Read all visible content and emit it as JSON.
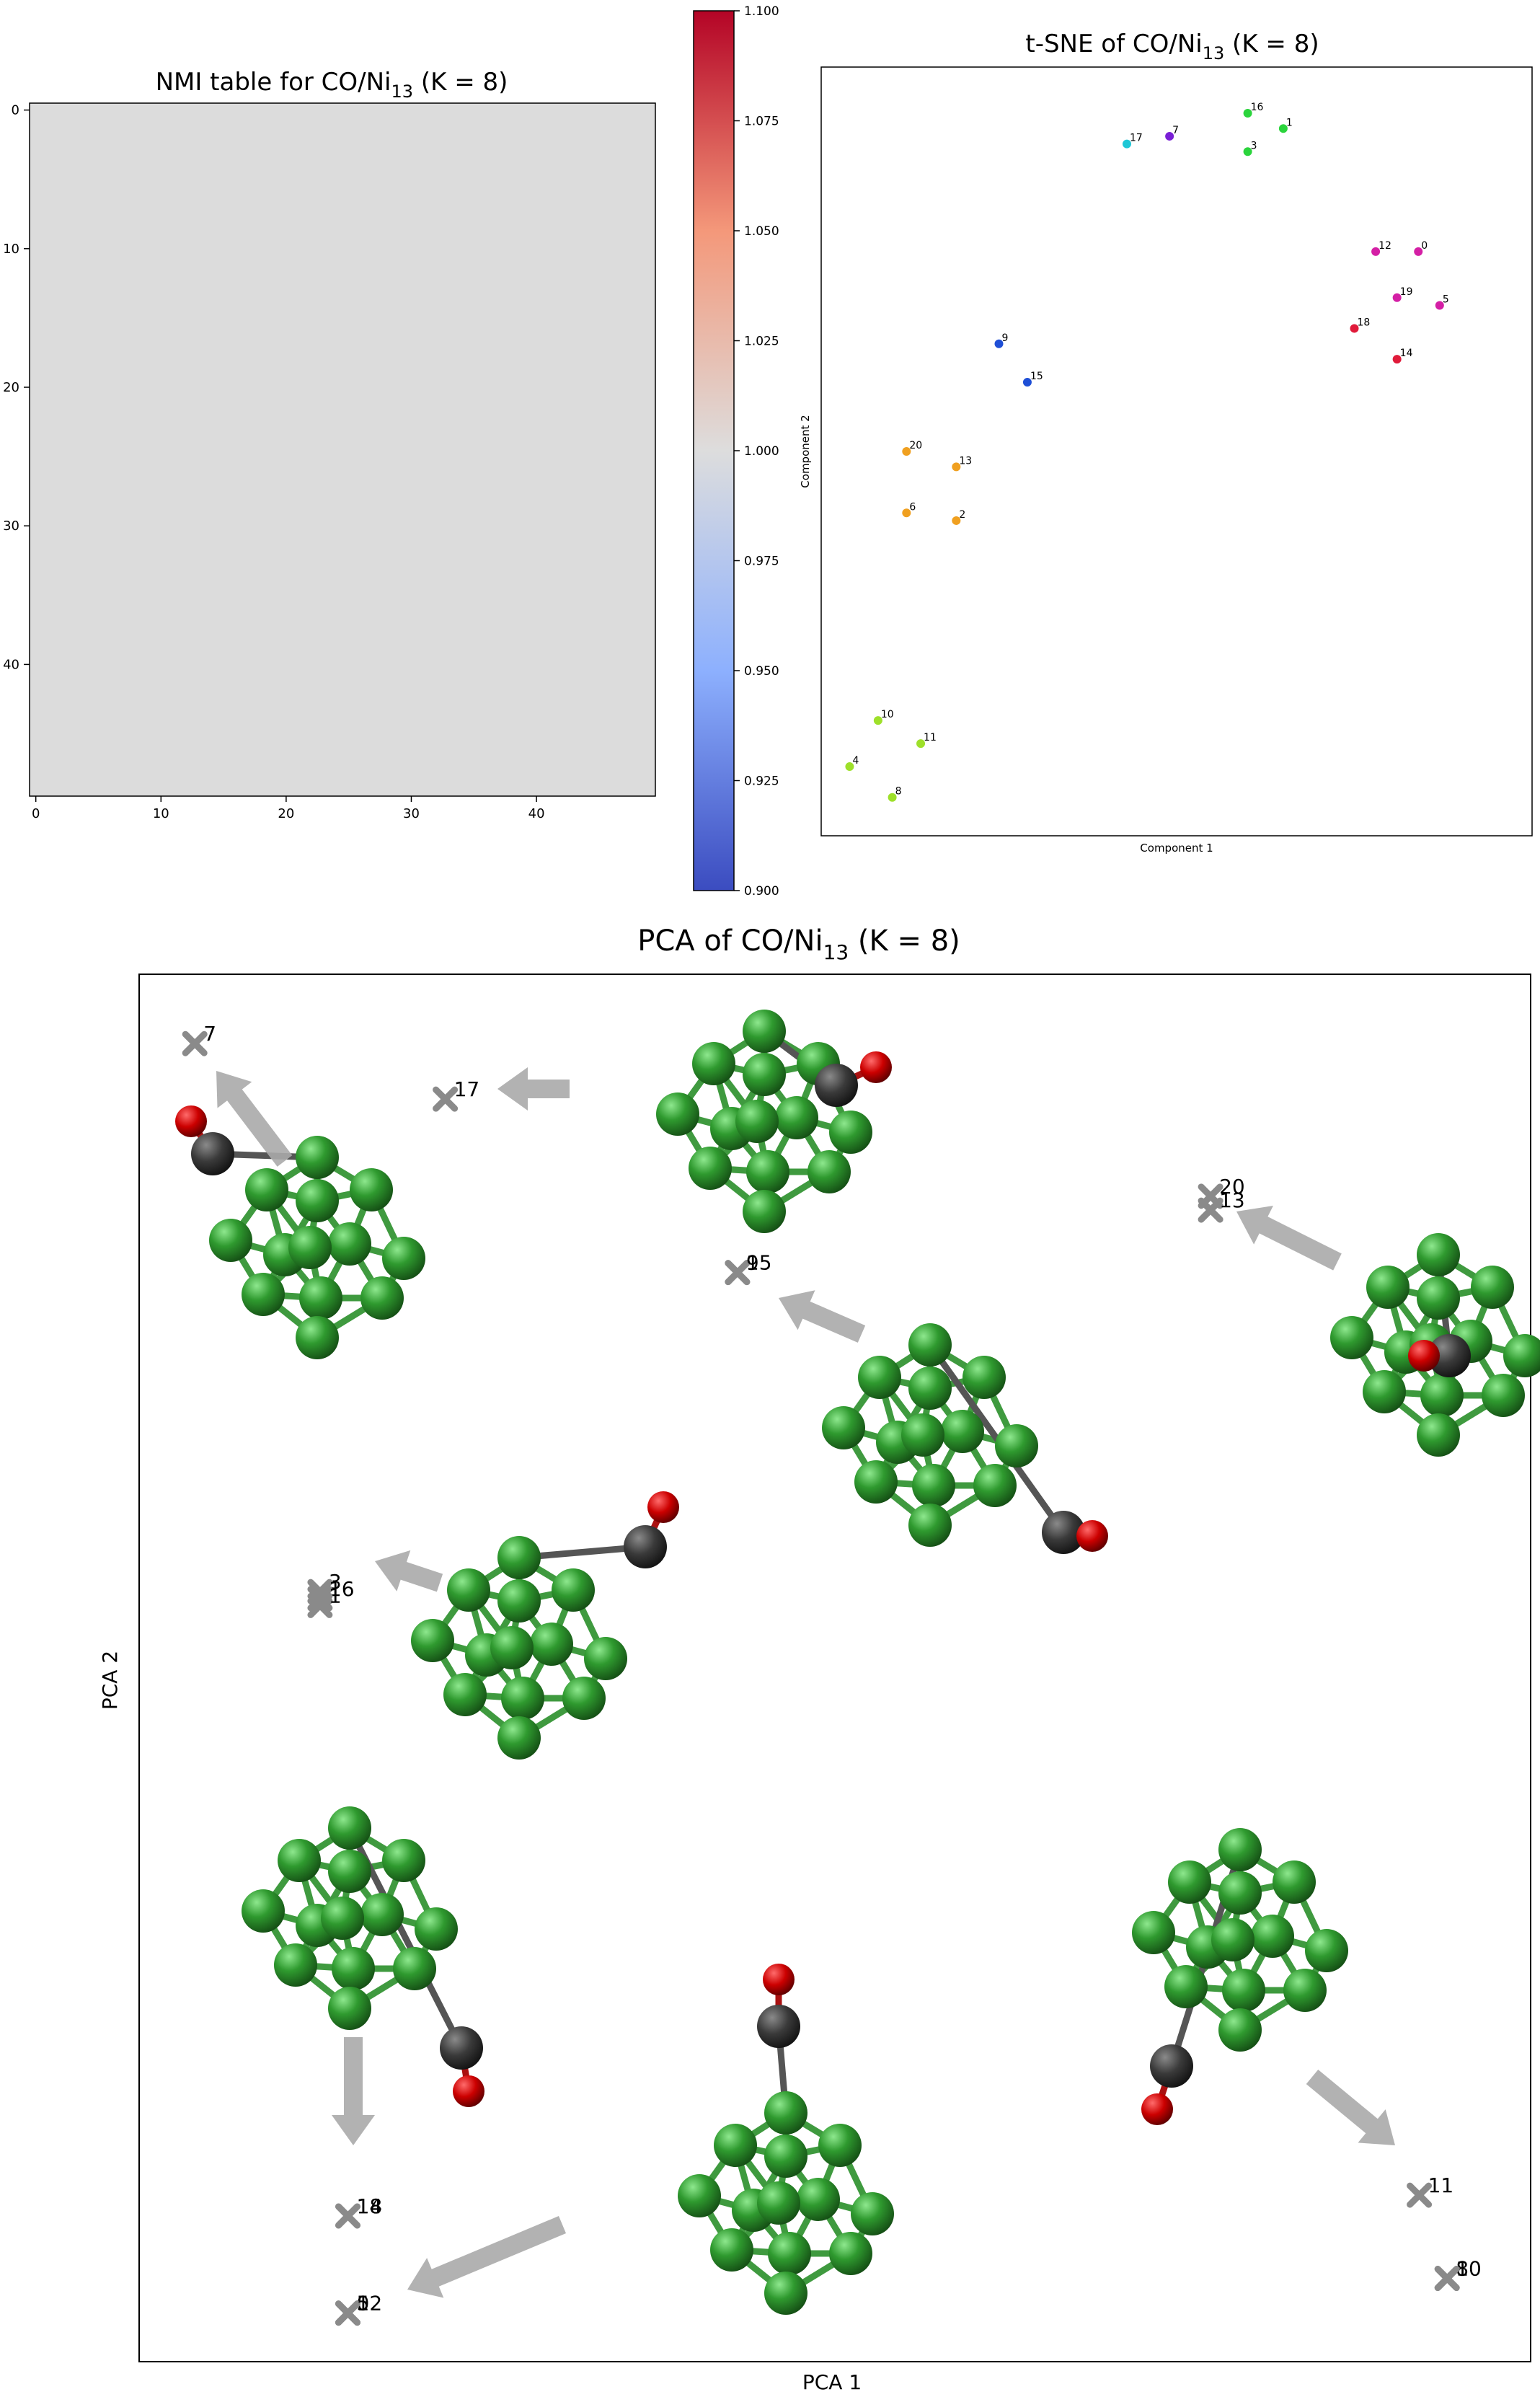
{
  "chart_data": [
    {
      "type": "heatmap",
      "title": "NMI table for  CO/Ni",
      "title_sub": "13",
      "title_tail": " (K = 8)",
      "x_ticks": [
        "0",
        "10",
        "20",
        "30",
        "40"
      ],
      "y_ticks": [
        "0",
        "10",
        "20",
        "30",
        "40"
      ],
      "x_range": [
        0,
        49
      ],
      "y_range": [
        0,
        49
      ],
      "cell_value": 1.0,
      "cell_color": "#dcdcdc",
      "colorbar": {
        "range": [
          0.9,
          1.1
        ],
        "ticks": [
          "0.900",
          "0.925",
          "0.950",
          "0.975",
          "1.000",
          "1.025",
          "1.050",
          "1.075",
          "1.100"
        ],
        "colormap": "coolwarm"
      }
    },
    {
      "type": "scatter",
      "title": "t-SNE of CO/Ni",
      "title_sub": "13",
      "title_tail": " (K = 8)",
      "xlabel": "Component 1",
      "ylabel": "Component 2",
      "points": [
        {
          "id": "16",
          "x": 60.0,
          "y": 94.0,
          "color": "#2bd43c"
        },
        {
          "id": "1",
          "x": 65.0,
          "y": 92.0,
          "color": "#2bd43c"
        },
        {
          "id": "7",
          "x": 49.0,
          "y": 91.0,
          "color": "#7a1fd6"
        },
        {
          "id": "17",
          "x": 43.0,
          "y": 90.0,
          "color": "#1fc7d6"
        },
        {
          "id": "3",
          "x": 60.0,
          "y": 89.0,
          "color": "#2bd43c"
        },
        {
          "id": "12",
          "x": 78.0,
          "y": 76.0,
          "color": "#d41fa5"
        },
        {
          "id": "0",
          "x": 84.0,
          "y": 76.0,
          "color": "#d41fa5"
        },
        {
          "id": "19",
          "x": 81.0,
          "y": 70.0,
          "color": "#d41fa5"
        },
        {
          "id": "5",
          "x": 87.0,
          "y": 69.0,
          "color": "#d41fa5"
        },
        {
          "id": "18",
          "x": 75.0,
          "y": 66.0,
          "color": "#e01a3a"
        },
        {
          "id": "14",
          "x": 81.0,
          "y": 62.0,
          "color": "#e01a3a"
        },
        {
          "id": "9",
          "x": 25.0,
          "y": 64.0,
          "color": "#1f4fd6"
        },
        {
          "id": "15",
          "x": 29.0,
          "y": 59.0,
          "color": "#1f4fd6"
        },
        {
          "id": "20",
          "x": 12.0,
          "y": 50.0,
          "color": "#f0a020"
        },
        {
          "id": "13",
          "x": 19.0,
          "y": 48.0,
          "color": "#f0a020"
        },
        {
          "id": "6",
          "x": 12.0,
          "y": 42.0,
          "color": "#f0a020"
        },
        {
          "id": "2",
          "x": 19.0,
          "y": 41.0,
          "color": "#f0a020"
        },
        {
          "id": "10",
          "x": 8.0,
          "y": 15.0,
          "color": "#9ee02a"
        },
        {
          "id": "11",
          "x": 14.0,
          "y": 12.0,
          "color": "#9ee02a"
        },
        {
          "id": "4",
          "x": 4.0,
          "y": 9.0,
          "color": "#9ee02a"
        },
        {
          "id": "8",
          "x": 10.0,
          "y": 5.0,
          "color": "#9ee02a"
        }
      ]
    },
    {
      "type": "scatter",
      "title": "PCA of CO/Ni",
      "title_sub": "13",
      "title_tail": " (K = 8)",
      "xlabel": "PCA 1",
      "ylabel": "PCA 2",
      "marker": "x",
      "points": [
        {
          "label": "7",
          "x": 4.0,
          "y": 95.0
        },
        {
          "label": "17",
          "x": 22.0,
          "y": 91.0
        },
        {
          "label": "20",
          "x": 77.0,
          "y": 84.0
        },
        {
          "label": "13",
          "x": 77.0,
          "y": 83.0
        },
        {
          "label": "15",
          "x": 43.0,
          "y": 78.5
        },
        {
          "label": "9",
          "x": 43.0,
          "y": 78.5
        },
        {
          "label": "3",
          "x": 13.0,
          "y": 55.5
        },
        {
          "label": "16",
          "x": 13.0,
          "y": 55.0
        },
        {
          "label": "1",
          "x": 13.0,
          "y": 54.5
        },
        {
          "label": "18",
          "x": 15.0,
          "y": 10.5
        },
        {
          "label": "14",
          "x": 15.0,
          "y": 10.5
        },
        {
          "label": "12",
          "x": 15.0,
          "y": 3.5
        },
        {
          "label": "0",
          "x": 15.0,
          "y": 3.5
        },
        {
          "label": "5",
          "x": 15.0,
          "y": 3.5
        },
        {
          "label": "11",
          "x": 92.0,
          "y": 12.0
        },
        {
          "label": "8",
          "x": 94.0,
          "y": 6.0
        },
        {
          "label": "10",
          "x": 94.0,
          "y": 6.0
        }
      ]
    }
  ]
}
